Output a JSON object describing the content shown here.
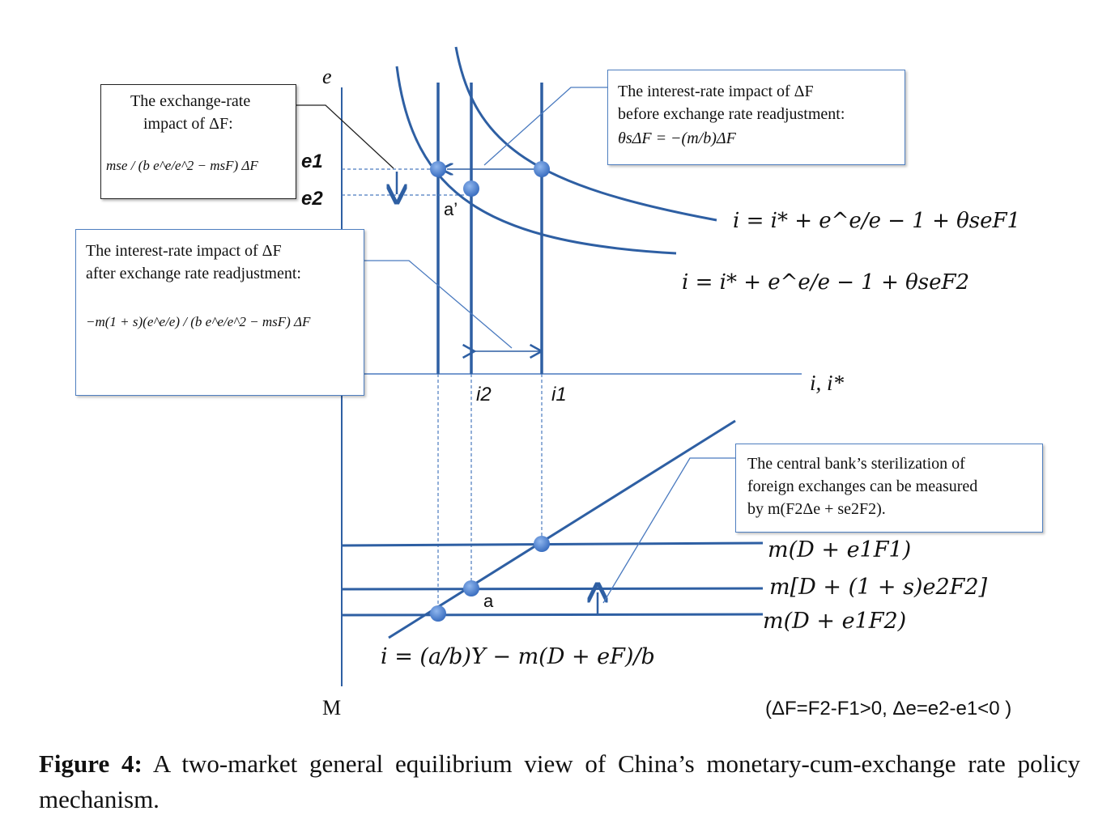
{
  "diagram": {
    "axis_e": "e",
    "axis_i": "i, i*",
    "axis_M": "M",
    "tick_e1": "e1",
    "tick_e2": "e2",
    "tick_i1": "i1",
    "tick_i2": "i2",
    "point_a_prime": "a’",
    "point_a": "a",
    "curve_F1_eq": "i = i* + e^e/e − 1 + θseF1",
    "curve_F2_eq": "i = i* + e^e/e − 1 + θseF2",
    "line_mD_e1F1": "m(D + e1F1)",
    "line_mD_1s_e2F2": "m[D + (1 + s)e2F2]",
    "line_mD_e1F2": "m(D + e1F2)",
    "lm_eq": "i = (a/b)Y − m(D + eF)/b",
    "condition": "(ΔF=F2-F1>0, Δe=e2-e1<0 )"
  },
  "boxes": {
    "exchange_rate_impact": {
      "line1": "The exchange-rate",
      "line2": "impact of ΔF:",
      "formula": "mse / (b e^e/e^2 − msF) ΔF"
    },
    "before_readjustment": {
      "line1": "The interest-rate  impact  of ΔF",
      "line2": "before exchange  rate readjustment:",
      "formula": "θsΔF = −(m/b)ΔF"
    },
    "after_readjustment": {
      "line1": "The interest-rate  impact  of ΔF",
      "line2": "after exchange  rate readjustment:",
      "formula": "−m(1 + s)(e^e/e) / (b e^e/e^2 − msF) ΔF"
    },
    "sterilization": {
      "line1": "The central bank’s sterilization  of",
      "line2": "foreign exchanges  can be measured",
      "line3": "by m(F2Δe + se2F2)."
    }
  },
  "caption": {
    "label": "Figure 4:",
    "text": " A two-market general equilibrium view of China’s monetary-cum-exchange rate policy mechanism."
  },
  "colors": {
    "line": "#2e5fa3",
    "point": "#4a7fd0",
    "thin": "#4a7abf"
  }
}
